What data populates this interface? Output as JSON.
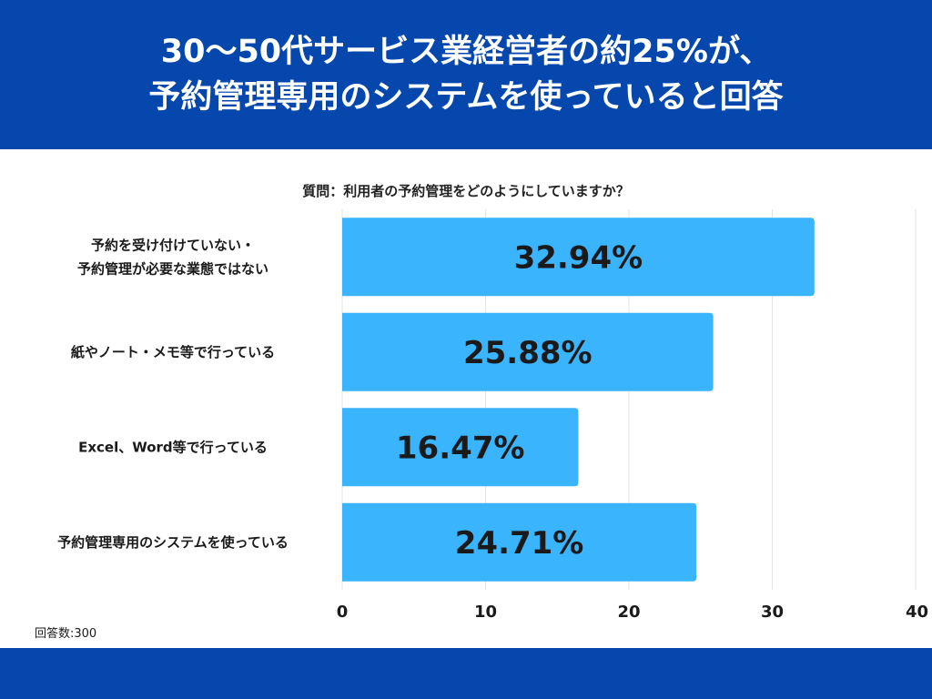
{
  "header": {
    "title_line1": "30〜50代サービス業経営者の約25%が、",
    "title_line2": "予約管理専用のシステムを使っていると回答"
  },
  "question": "質問：利用者の予約管理をどのようにしていますか？",
  "note": "回答数:300",
  "colors": {
    "header_bg": "#0547ad",
    "bar": "#3ab4fd"
  },
  "chart_data": {
    "type": "bar",
    "orientation": "horizontal",
    "title": "質問：利用者の予約管理をどのようにしていますか？",
    "categories": [
      [
        "予約を受け付けていない・",
        "予約管理が必要な業態ではない"
      ],
      [
        "紙やノート・メモ等で行っている"
      ],
      [
        "Excel、Word等で行っている"
      ],
      [
        "予約管理専用のシステムを使っている"
      ]
    ],
    "values": [
      32.94,
      25.88,
      16.47,
      24.71
    ],
    "value_labels": [
      "32.94%",
      "25.88%",
      "16.47%",
      "24.71%"
    ],
    "xlim": [
      0,
      40
    ],
    "xticks": [
      0,
      10,
      20,
      30,
      40
    ],
    "xlabel": "",
    "ylabel": "",
    "grid": true
  }
}
